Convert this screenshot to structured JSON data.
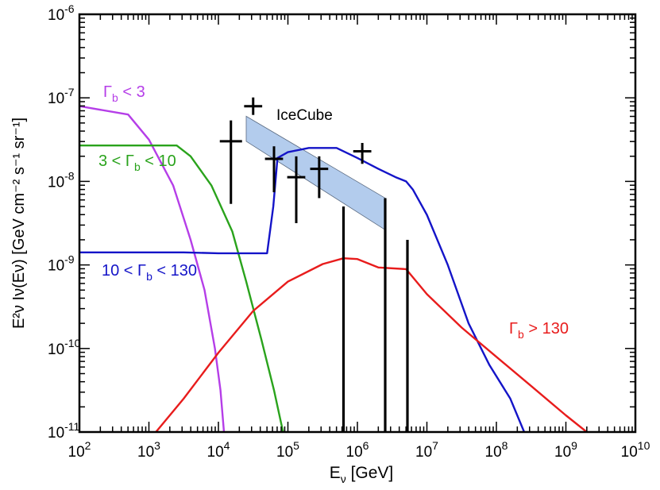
{
  "chart_data": {
    "type": "line",
    "title": "",
    "xlabel": {
      "main": "E",
      "sub": "ν",
      "unit": "[GeV]"
    },
    "ylabel": {
      "text": "E²ν Iν(Eν) [GeV cm⁻² s⁻¹ sr⁻¹]"
    },
    "xscale": "log",
    "yscale": "log",
    "xlim_exp": [
      2,
      10
    ],
    "ylim_exp": [
      -11,
      -6
    ],
    "x_tick_labels": [
      {
        "exp": 2,
        "base": "10",
        "sup": "2"
      },
      {
        "exp": 3,
        "base": "10",
        "sup": "3"
      },
      {
        "exp": 4,
        "base": "10",
        "sup": "4"
      },
      {
        "exp": 5,
        "base": "10",
        "sup": "5"
      },
      {
        "exp": 6,
        "base": "10",
        "sup": "6"
      },
      {
        "exp": 7,
        "base": "10",
        "sup": "7"
      },
      {
        "exp": 8,
        "base": "10",
        "sup": "8"
      },
      {
        "exp": 9,
        "base": "10",
        "sup": "9"
      },
      {
        "exp": 10,
        "base": "10",
        "sup": "10"
      }
    ],
    "y_tick_labels": [
      {
        "exp": -11,
        "base": "10",
        "sup": "-11"
      },
      {
        "exp": -10,
        "base": "10",
        "sup": "-10"
      },
      {
        "exp": -9,
        "base": "10",
        "sup": "-9"
      },
      {
        "exp": -8,
        "base": "10",
        "sup": "-8"
      },
      {
        "exp": -7,
        "base": "10",
        "sup": "-7"
      },
      {
        "exp": -6,
        "base": "10",
        "sup": "-6"
      }
    ],
    "series": [
      {
        "id": "gamma-lt-3",
        "label": {
          "pre": "",
          "sym": "Γ",
          "sub": "b",
          "post": " < 3"
        },
        "color": "#b53ee8",
        "points": [
          [
            2.0,
            -7.1
          ],
          [
            2.7,
            -7.2
          ],
          [
            3.0,
            -7.5
          ],
          [
            3.35,
            -8.05
          ],
          [
            3.6,
            -8.7
          ],
          [
            3.8,
            -9.3
          ],
          [
            3.95,
            -10.0
          ],
          [
            4.03,
            -10.5
          ],
          [
            4.08,
            -11.0
          ]
        ]
      },
      {
        "id": "gamma-3-10",
        "label": {
          "pre": "3 < ",
          "sym": "Γ",
          "sub": "b",
          "post": " < 10"
        },
        "color": "#2aa31c",
        "points": [
          [
            2.0,
            -7.57
          ],
          [
            3.0,
            -7.57
          ],
          [
            3.4,
            -7.57
          ],
          [
            3.6,
            -7.7
          ],
          [
            3.9,
            -8.05
          ],
          [
            4.2,
            -8.6
          ],
          [
            4.4,
            -9.2
          ],
          [
            4.62,
            -9.9
          ],
          [
            4.8,
            -10.5
          ],
          [
            4.93,
            -11.0
          ]
        ]
      },
      {
        "id": "gamma-10-130",
        "label": {
          "pre": "10 < ",
          "sym": "Γ",
          "sub": "b",
          "post": " < 130"
        },
        "color": "#1414c8",
        "points": [
          [
            2.0,
            -8.85
          ],
          [
            3.5,
            -8.85
          ],
          [
            4.0,
            -8.86
          ],
          [
            4.3,
            -8.86
          ],
          [
            4.7,
            -8.86
          ],
          [
            4.79,
            -8.3
          ],
          [
            4.85,
            -7.72
          ],
          [
            5.0,
            -7.65
          ],
          [
            5.3,
            -7.6
          ],
          [
            5.7,
            -7.6
          ],
          [
            6.0,
            -7.72
          ],
          [
            6.3,
            -7.85
          ],
          [
            6.55,
            -7.95
          ],
          [
            6.7,
            -8.0
          ],
          [
            6.8,
            -8.1
          ],
          [
            7.0,
            -8.4
          ],
          [
            7.3,
            -9.0
          ],
          [
            7.6,
            -9.7
          ],
          [
            7.9,
            -10.2
          ],
          [
            8.2,
            -10.6
          ],
          [
            8.4,
            -11.0
          ]
        ]
      },
      {
        "id": "gamma-gt-130",
        "label": {
          "pre": "",
          "sym": "Γ",
          "sub": "b",
          "post": " > 130"
        },
        "color": "#e81c1c",
        "points": [
          [
            3.1,
            -11.0
          ],
          [
            3.5,
            -10.6
          ],
          [
            4.0,
            -10.05
          ],
          [
            4.5,
            -9.55
          ],
          [
            5.0,
            -9.2
          ],
          [
            5.5,
            -8.99
          ],
          [
            5.8,
            -8.92
          ],
          [
            6.0,
            -8.93
          ],
          [
            6.3,
            -9.03
          ],
          [
            6.7,
            -9.05
          ],
          [
            7.0,
            -9.35
          ],
          [
            7.5,
            -9.75
          ],
          [
            8.0,
            -10.1
          ],
          [
            8.5,
            -10.45
          ],
          [
            9.0,
            -10.8
          ],
          [
            9.3,
            -11.0
          ]
        ]
      }
    ],
    "icecube": {
      "label": "IceCube",
      "color": "#000000",
      "points": [
        {
          "x": 4.18,
          "y": -7.52,
          "xerr": [
            0.16,
            0.16
          ],
          "yerr": [
            0.75,
            0.25
          ]
        },
        {
          "x": 4.5,
          "y": -7.1,
          "xerr": [
            0.13,
            0.13
          ],
          "yerr": [
            0.0,
            0.0
          ]
        },
        {
          "x": 4.8,
          "y": -7.73,
          "xerr": [
            0.13,
            0.13
          ],
          "yerr": [
            0.4,
            0.15
          ]
        },
        {
          "x": 5.12,
          "y": -7.95,
          "xerr": [
            0.13,
            0.13
          ],
          "yerr": [
            0.55,
            0.25
          ]
        },
        {
          "x": 5.45,
          "y": -7.85,
          "xerr": [
            0.13,
            0.13
          ],
          "yerr": [
            0.35,
            0.15
          ]
        },
        {
          "x": 6.07,
          "y": -7.64,
          "xerr": [
            0.13,
            0.13
          ],
          "yerr": [
            0.15,
            0.1
          ]
        }
      ],
      "upper_limits": [
        {
          "x": 5.8,
          "y": -8.3
        },
        {
          "x": 6.4,
          "y": -8.2
        },
        {
          "x": 6.72,
          "y": -8.7
        }
      ],
      "band": {
        "color": "#a6c3ea",
        "upper": [
          [
            4.4,
            -7.22
          ],
          [
            6.4,
            -8.2
          ]
        ],
        "lower": [
          [
            4.4,
            -7.52
          ],
          [
            6.4,
            -8.58
          ]
        ]
      }
    }
  }
}
